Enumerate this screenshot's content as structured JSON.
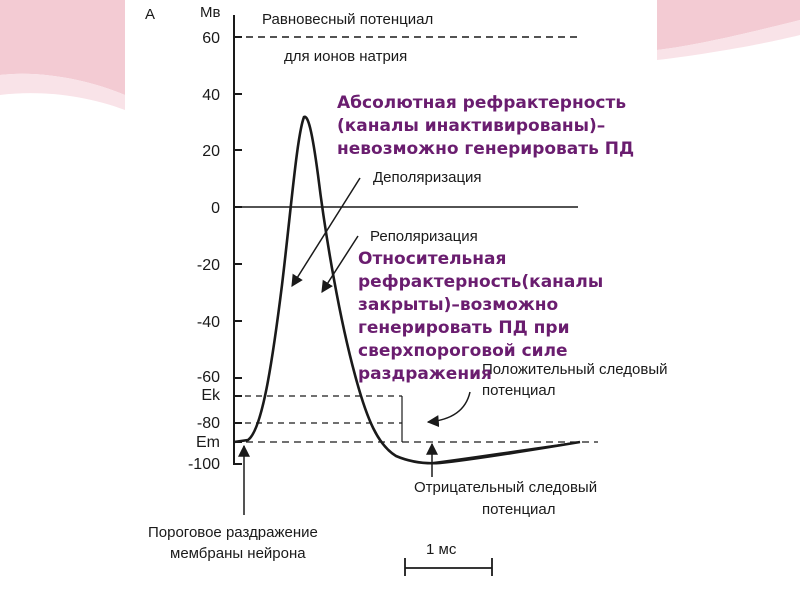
{
  "colors": {
    "slide_pink": "#f3cbd3",
    "slide_pink_light": "#f9e3e8",
    "overlay_text": "#6a1d6f",
    "figure_ink": "#1a1a1a"
  },
  "figure": {
    "panel_letter": "А",
    "unit": "Мв",
    "y_ticks": [
      "60",
      "40",
      "20",
      "0",
      "-20",
      "-40",
      "-60",
      "Ek",
      "-80",
      "Em",
      "-100"
    ],
    "sodium_equilibrium": [
      "Равновесный потенциал",
      "для ионов натрия"
    ],
    "depolarization": "Деполяризация",
    "repolarization": "Реполяризация",
    "positive_trace": [
      "Положительный следовый",
      "потенциал"
    ],
    "negative_trace": [
      "Отрицательный следовый",
      "потенциал"
    ],
    "threshold_stimulus": [
      "Пороговое раздражение",
      "мембраны нейрона"
    ],
    "time_scale": "1 мс"
  },
  "overlays": {
    "absolute_refractory": [
      "Абсолютная рефрактерность",
      "(каналы инактивированы)–",
      "невозможно генерировать ПД"
    ],
    "relative_refractory": [
      "Относительная",
      "рефрактерность(каналы",
      "закрыты)–возможно",
      "генерировать ПД при",
      "сверхпороговой силе",
      "раздражения"
    ]
  }
}
